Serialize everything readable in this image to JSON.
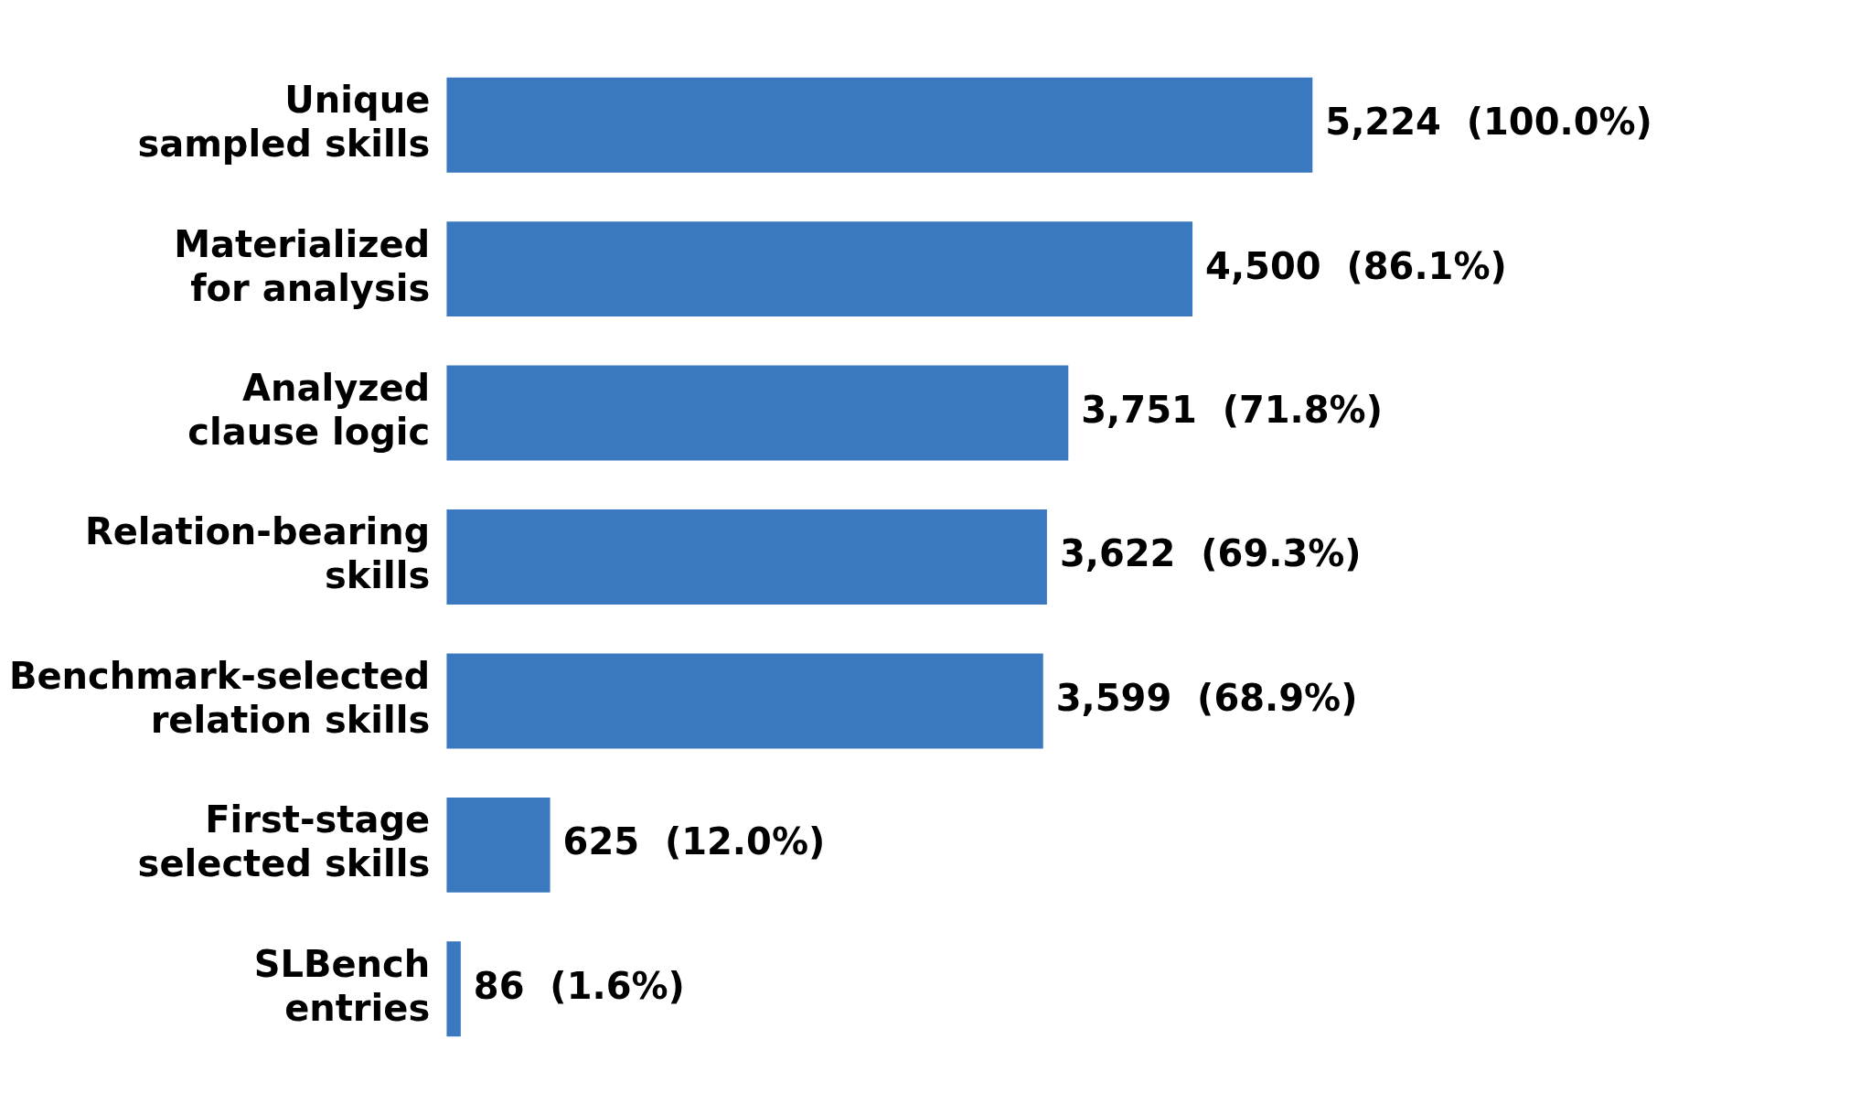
{
  "chart_data": {
    "type": "bar",
    "orientation": "horizontal",
    "categories": [
      "Unique sampled skills",
      "Materialized for analysis",
      "Analyzed clause logic",
      "Relation-bearing skills",
      "Benchmark-selected relation skills",
      "First-stage selected skills",
      "SLBench entries"
    ],
    "values": [
      5224,
      4500,
      3751,
      3622,
      3599,
      625,
      86
    ],
    "value_labels": [
      "5,224  (100.0%)",
      "4,500  (86.1%)",
      "3,751  (71.8%)",
      "3,622  (69.3%)",
      "3,599  (68.9%)",
      "625  (12.0%)",
      "86  (1.6%)"
    ],
    "color": "#3a78c0",
    "tick_labels": "y"
  }
}
